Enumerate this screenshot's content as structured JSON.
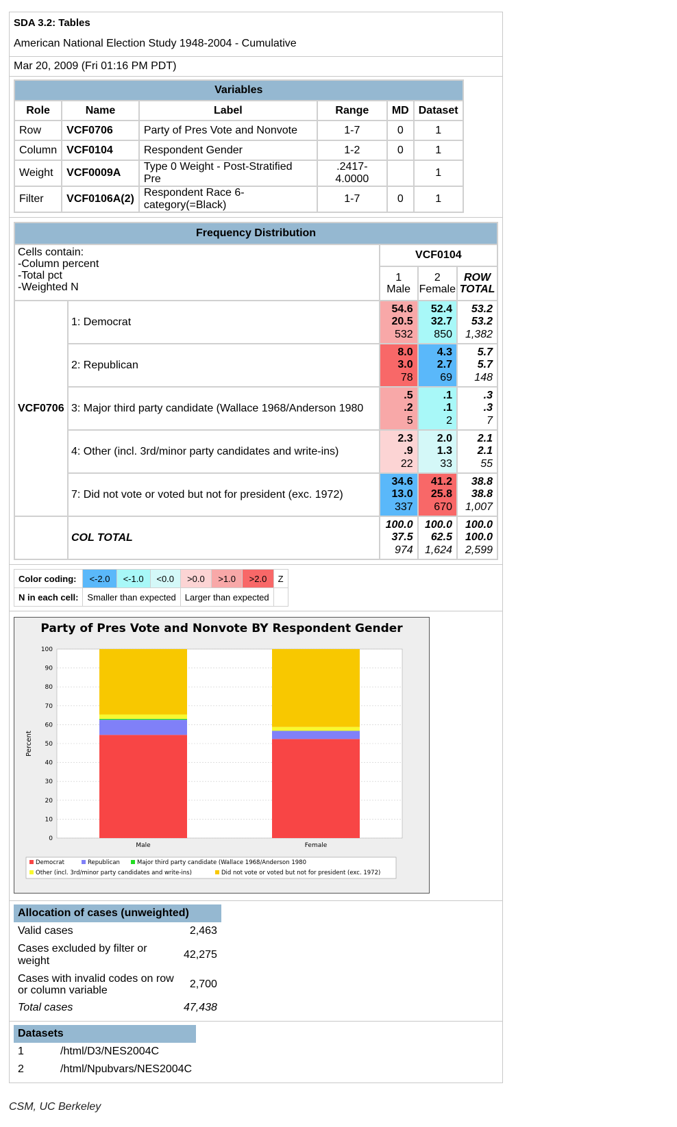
{
  "header": {
    "title": "SDA 3.2: Tables",
    "study": "American National Election Study 1948-2004 - Cumulative",
    "date": "Mar 20, 2009 (Fri 01:16 PM PDT)"
  },
  "variables": {
    "caption": "Variables",
    "headers": [
      "Role",
      "Name",
      "Label",
      "Range",
      "MD",
      "Dataset"
    ],
    "rows": [
      [
        "Row",
        "VCF0706",
        "Party of Pres Vote and Nonvote",
        "1-7",
        "0",
        "1"
      ],
      [
        "Column",
        "VCF0104",
        "Respondent Gender",
        "1-2",
        "0",
        "1"
      ],
      [
        "Weight",
        "VCF0009A",
        "Type 0 Weight - Post-Stratified Pre",
        ".2417-4.0000",
        "",
        "1"
      ],
      [
        "Filter",
        "VCF0106A(2)",
        "Respondent Race 6-category(=Black)",
        "1-7",
        "0",
        "1"
      ]
    ]
  },
  "freq": {
    "caption": "Frequency Distribution",
    "cells_contain": [
      "Cells contain:",
      "-Column percent",
      "-Total pct",
      "-Weighted N"
    ],
    "col_var": "VCF0104",
    "row_var": "VCF0706",
    "col_heads": [
      [
        "1",
        "Male"
      ],
      [
        "2",
        "Female"
      ]
    ],
    "row_total": [
      "ROW",
      "TOTAL"
    ],
    "rows": [
      {
        "label": "1: Democrat",
        "male": [
          "54.6",
          "20.5",
          "532"
        ],
        "female": [
          "52.4",
          "32.7",
          "850"
        ],
        "total": [
          "53.2",
          "53.2",
          "1,382"
        ],
        "mc": "#f8a8a8",
        "fc": "#a8f8f8"
      },
      {
        "label": "2: Republican",
        "male": [
          "8.0",
          "3.0",
          "78"
        ],
        "female": [
          "4.3",
          "2.7",
          "69"
        ],
        "total": [
          "5.7",
          "5.7",
          "148"
        ],
        "mc": "#f86868",
        "fc": "#5ab8fa"
      },
      {
        "label": "3: Major third party candidate (Wallace 1968/Anderson 1980",
        "male": [
          ".5",
          ".2",
          "5"
        ],
        "female": [
          ".1",
          ".1",
          "2"
        ],
        "total": [
          ".3",
          ".3",
          "7"
        ],
        "mc": "#f8a8a8",
        "fc": "#a8f8f8"
      },
      {
        "label": "4: Other (incl. 3rd/minor party candidates and write-ins)",
        "male": [
          "2.3",
          ".9",
          "22"
        ],
        "female": [
          "2.0",
          "1.3",
          "33"
        ],
        "total": [
          "2.1",
          "2.1",
          "55"
        ],
        "mc": "#fcd4d4",
        "fc": "#d4f8f8"
      },
      {
        "label": "7: Did not vote or voted but not for president (exc. 1972)",
        "male": [
          "34.6",
          "13.0",
          "337"
        ],
        "female": [
          "41.2",
          "25.8",
          "670"
        ],
        "total": [
          "38.8",
          "38.8",
          "1,007"
        ],
        "mc": "#5ab8fa",
        "fc": "#f86868"
      }
    ],
    "col_total": {
      "label": "COL TOTAL",
      "male": [
        "100.0",
        "37.5",
        "974"
      ],
      "female": [
        "100.0",
        "62.5",
        "1,624"
      ],
      "total": [
        "100.0",
        "100.0",
        "2,599"
      ]
    }
  },
  "color_coding": {
    "label": "Color coding:",
    "items": [
      {
        "t": "<-2.0",
        "c": "#5ab8fa"
      },
      {
        "t": "<-1.0",
        "c": "#a8f8f8"
      },
      {
        "t": "<0.0",
        "c": "#d4f8f8"
      },
      {
        "t": ">0.0",
        "c": "#fcd4d4"
      },
      {
        "t": ">1.0",
        "c": "#f8a8a8"
      },
      {
        "t": ">2.0",
        "c": "#f86868"
      }
    ],
    "z": "Z",
    "n_label": "N in each cell:",
    "smaller": "Smaller than expected",
    "larger": "Larger than expected"
  },
  "chart_data": {
    "type": "bar",
    "title": "Party of Pres Vote and Nonvote BY Respondent Gender",
    "ylabel": "Percent",
    "xlabel": "",
    "categories": [
      "Male",
      "Female"
    ],
    "ylim": [
      0,
      100
    ],
    "yticks": [
      0,
      10,
      20,
      30,
      40,
      50,
      60,
      70,
      80,
      90,
      100
    ],
    "stacked": true,
    "legend_placement": "bottom",
    "series": [
      {
        "name": "Democrat",
        "color": "#f84545",
        "values": [
          54.6,
          52.4
        ]
      },
      {
        "name": "Republican",
        "color": "#8080f8",
        "values": [
          8.0,
          4.3
        ]
      },
      {
        "name": "Major third party candidate (Wallace 1968/Anderson 1980",
        "color": "#22dd22",
        "values": [
          0.5,
          0.1
        ]
      },
      {
        "name": "Other (incl. 3rd/minor party candidates and write-ins)",
        "color": "#f8f830",
        "values": [
          2.3,
          2.0
        ]
      },
      {
        "name": "Did not vote or voted but not for president (exc. 1972)",
        "color": "#f8c800",
        "values": [
          34.6,
          41.2
        ]
      }
    ]
  },
  "allocation": {
    "caption": "Allocation of cases (unweighted)",
    "rows": [
      [
        "Valid cases",
        "2,463"
      ],
      [
        "Cases excluded by filter or weight",
        "42,275"
      ],
      [
        "Cases with invalid codes on row or column variable",
        "2,700"
      ]
    ],
    "total": [
      "Total cases",
      "47,438"
    ]
  },
  "datasets": {
    "caption": "Datasets",
    "rows": [
      [
        "1",
        "/html/D3/NES2004C"
      ],
      [
        "2",
        "/html/Npubvars/NES2004C"
      ]
    ]
  },
  "footer": "CSM, UC Berkeley"
}
